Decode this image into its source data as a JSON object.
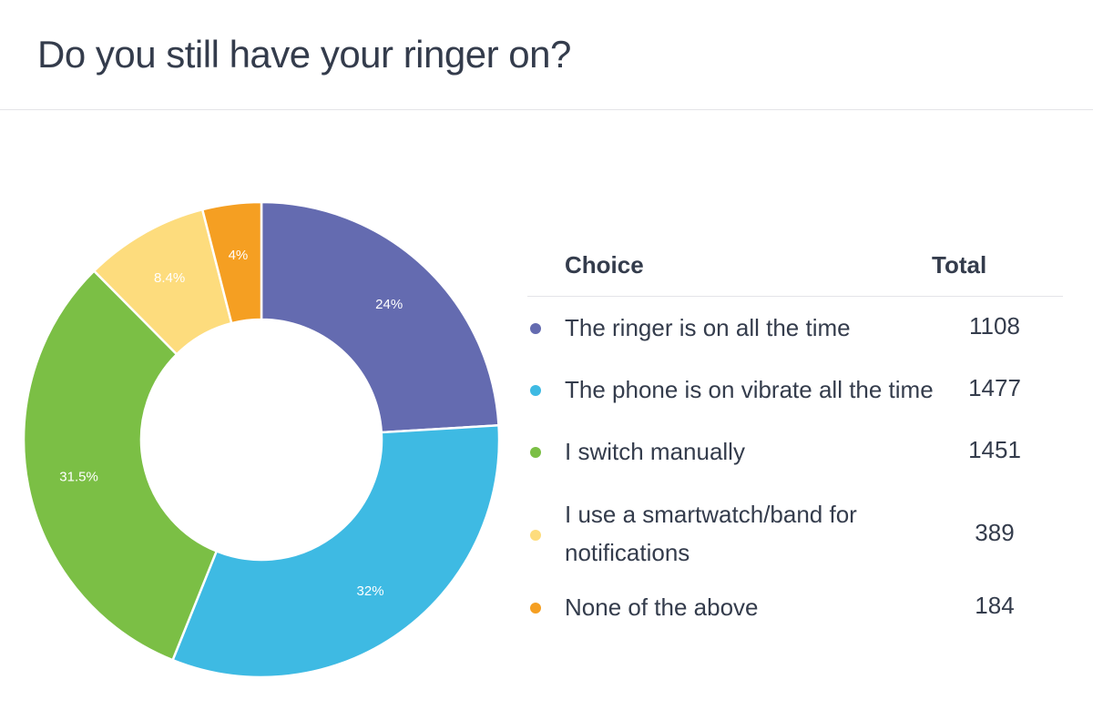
{
  "header": {
    "title": "Do you still have your ringer on?"
  },
  "legend": {
    "headers": {
      "choice": "Choice",
      "total": "Total"
    },
    "rows": [
      {
        "label": "The ringer is on all the time",
        "total": "1108",
        "color": "#646bb0"
      },
      {
        "label": "The phone is on vibrate all the time",
        "total": "1477",
        "color": "#3ebae3"
      },
      {
        "label": "I switch manually",
        "total": "1451",
        "color": "#7bbf45"
      },
      {
        "label": "I use a smartwatch/band for notifications",
        "label_line1": "I use a smartwatch/band for",
        "label_line2": "notifications",
        "total": "389",
        "color": "#fddc7d"
      },
      {
        "label": "None of the above",
        "total": "184",
        "color": "#f59f22"
      }
    ]
  },
  "chart_data": {
    "type": "pie",
    "subtype": "donut",
    "title": "Do you still have your ringer on?",
    "categories": [
      "The ringer is on all the time",
      "The phone is on vibrate all the time",
      "I switch manually",
      "I use a smartwatch/band for notifications",
      "None of the above"
    ],
    "values": [
      1108,
      1477,
      1451,
      389,
      184
    ],
    "percent_labels": [
      "24%",
      "32%",
      "31.5%",
      "8.4%",
      "4%"
    ],
    "colors": [
      "#646bb0",
      "#3ebae3",
      "#7bbf45",
      "#fddc7d",
      "#f59f22"
    ],
    "legend_position": "right"
  }
}
